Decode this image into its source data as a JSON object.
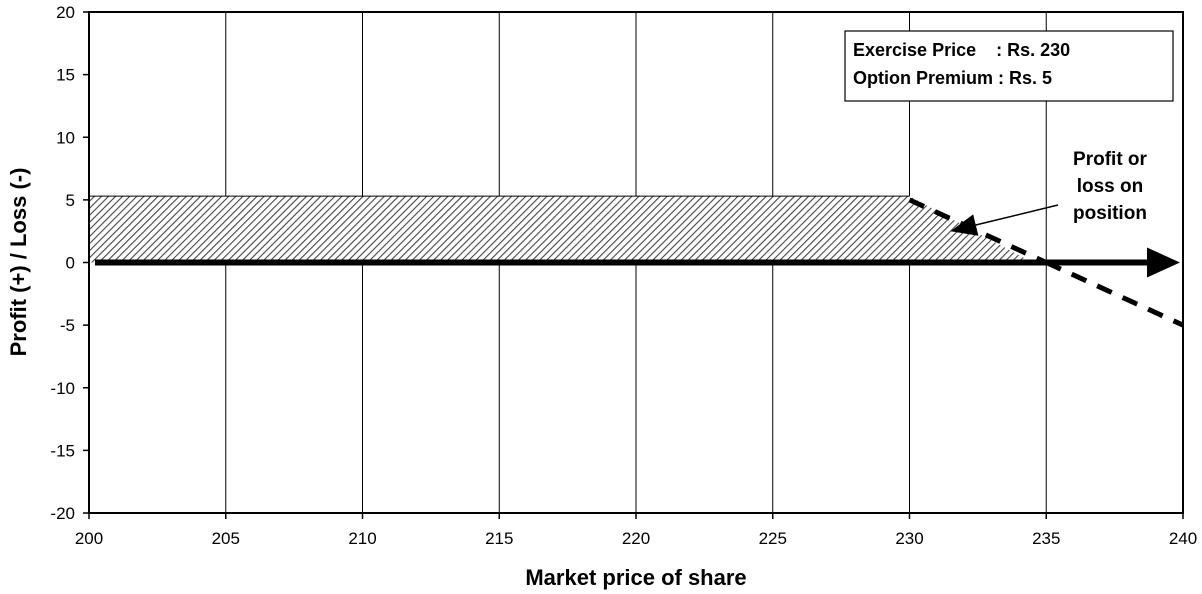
{
  "chart_data": {
    "type": "line",
    "title": "",
    "xlabel": "Market price of share",
    "ylabel": "Profit (+) / Loss (-)",
    "xlim": [
      200,
      240
    ],
    "ylim": [
      -20,
      20
    ],
    "xticks": [
      200,
      205,
      210,
      215,
      220,
      225,
      230,
      235,
      240
    ],
    "xtick_labels": [
      "200",
      "205",
      "210",
      "215",
      "220",
      "225",
      "230",
      "235",
      "240"
    ],
    "yticks": [
      20,
      15,
      10,
      5,
      0,
      -5,
      -10,
      -15,
      -20
    ],
    "ytick_labels": [
      "20",
      "15",
      "10",
      "5",
      "0",
      "-5",
      "-10",
      "-15",
      "-20"
    ],
    "grid": "vertical",
    "series": [
      {
        "style": "dashed",
        "x": [
          200,
          230,
          235,
          240
        ],
        "y": [
          5,
          5,
          0,
          -5
        ]
      }
    ],
    "shaded_region": {
      "pattern": "diagonal-hatch",
      "x": [
        200,
        230,
        234.5
      ],
      "y": [
        5.3,
        5.3,
        0
      ]
    },
    "zero_axis_arrow": {
      "from": 200,
      "to": 240
    },
    "info_box": {
      "line1": "Exercise Price    : Rs. 230",
      "line2": "Option Premium : Rs. 5",
      "placement": "top-right"
    },
    "annotation": {
      "lines": [
        "Profit or",
        "loss on",
        "position"
      ],
      "points_to": {
        "x": 231.5,
        "y": 2.5
      }
    }
  }
}
